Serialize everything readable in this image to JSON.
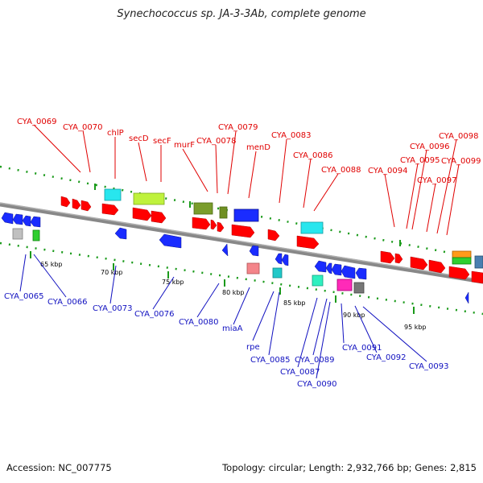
{
  "title": "Synechococcus sp. JA-3-3Ab, complete genome",
  "footer": {
    "accession": "Accession: NC_007775",
    "summary": "Topology: circular; Length: 2,932,766 bp; Genes: 2,815"
  },
  "colors": {
    "backbone": "#7a7a7a",
    "top_label": "#e00000",
    "bottom_label": "#1010c0",
    "tick": "#1a9a1a"
  },
  "scale_labels": [
    "65 kbp",
    "70 kbp",
    "75 kbp",
    "80 kbp",
    "85 kbp",
    "90 kbp",
    "95 kbp"
  ],
  "top_labels": [
    "CYA_0069",
    "CYA_0070",
    "chlP",
    "secD",
    "secF",
    "murF",
    "CYA_0078",
    "CYA_0079",
    "menD",
    "CYA_0083",
    "CYA_0086",
    "CYA_0088",
    "CYA_0094",
    "CYA_0095",
    "CYA_0096",
    "CYA_0097",
    "CYA_0098",
    "CYA_0099"
  ],
  "bottom_labels": [
    "CYA_0065",
    "CYA_0066",
    "CYA_0073",
    "CYA_0076",
    "CYA_0080",
    "miaA",
    "rpe",
    "CYA_0085",
    "CYA_0087",
    "CYA_0089",
    "CYA_0090",
    "CYA_0091",
    "CYA_0092",
    "CYA_0093"
  ]
}
